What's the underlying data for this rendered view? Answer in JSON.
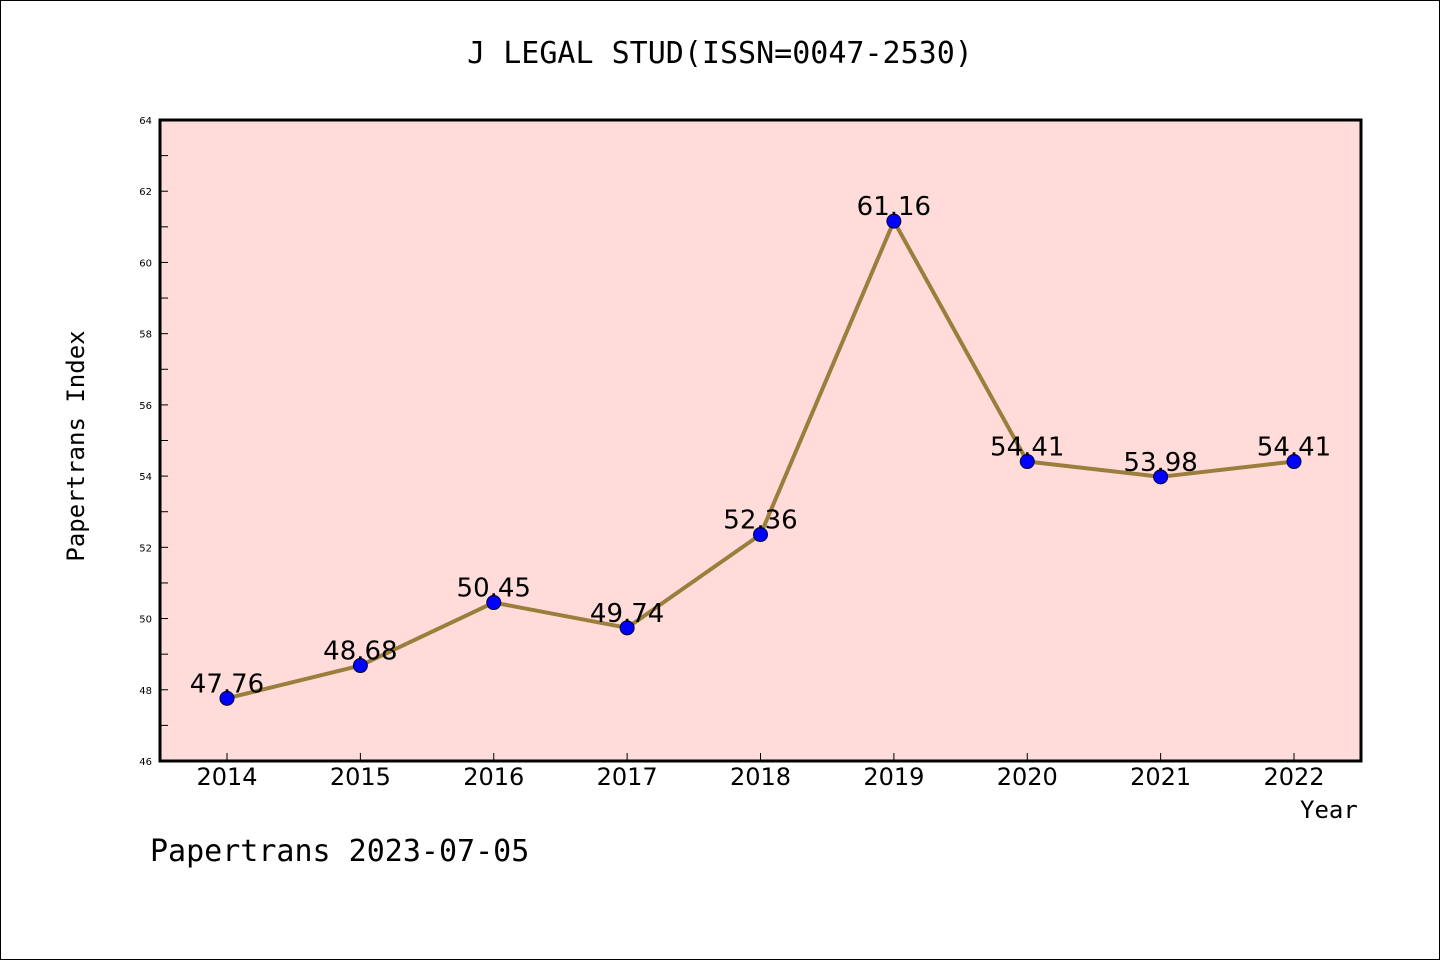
{
  "chart_data": {
    "type": "line",
    "title": "J LEGAL STUD(ISSN=0047-2530)",
    "xlabel": "Year",
    "ylabel": "Papertrans Index",
    "x": [
      "2014",
      "2015",
      "2016",
      "2017",
      "2018",
      "2019",
      "2020",
      "2021",
      "2022"
    ],
    "series": [
      {
        "values": [
          47.76,
          48.68,
          50.45,
          49.74,
          52.36,
          61.16,
          54.41,
          53.98,
          54.41
        ],
        "labels": [
          "47.76",
          "48.68",
          "50.45",
          "49.74",
          "52.36",
          "61.16",
          "54.41",
          "53.98",
          "54.41"
        ]
      }
    ],
    "ylim": [
      46,
      64
    ],
    "yticks": [
      "46",
      "48",
      "50",
      "52",
      "54",
      "56",
      "58",
      "60",
      "62",
      "64"
    ],
    "grid": false,
    "colors": {
      "plot_bg": "#FFDCDA",
      "line": "#9B7E3C",
      "marker": "#0000FF",
      "marker_edge": "#000033"
    }
  },
  "footer": "Papertrans 2023-07-05"
}
